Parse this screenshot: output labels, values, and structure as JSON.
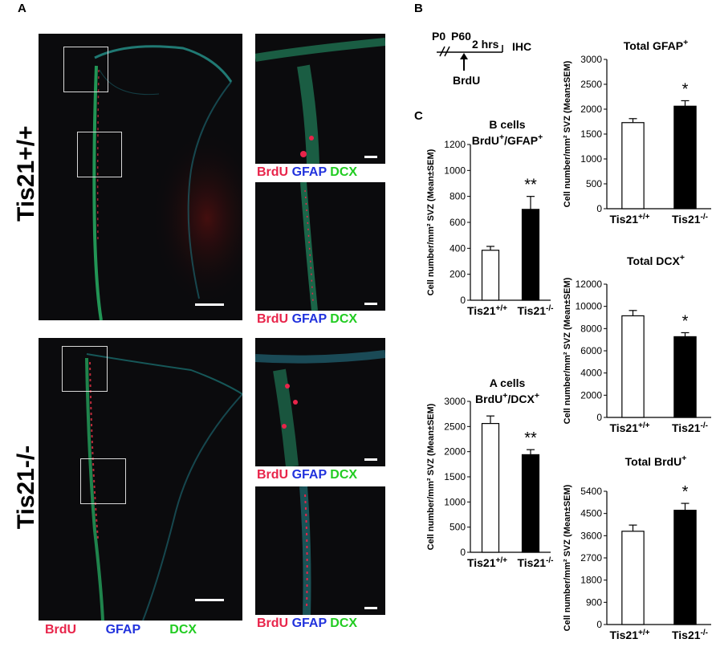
{
  "panels": {
    "a": "A",
    "b": "B",
    "c": "C"
  },
  "rows": {
    "wt": "Tis21+/+",
    "ko": "Tis21-/-"
  },
  "stains": {
    "brdu": "BrdU",
    "gfap": "GFAP",
    "dcx": "DCX"
  },
  "timeline": {
    "p0": "P0",
    "p60": "P60",
    "duration": "2 hrs",
    "ihc": "IHC",
    "brdu": "BrdU"
  },
  "colors": {
    "brdu": "#e8244a",
    "gfap": "#2233dd",
    "dcx": "#22cc22"
  },
  "chart_data": [
    {
      "id": "b_cells",
      "type": "bar",
      "title_line1": "B cells",
      "title_line2": "BrdU+/GFAP+",
      "ylabel": "Cell number/mm² SVZ (Mean±SEM)",
      "categories": [
        "Tis21+/+",
        "Tis21-/-"
      ],
      "values": [
        385,
        700
      ],
      "errors": [
        30,
        100
      ],
      "significance": "**",
      "ylim": [
        0,
        1200
      ],
      "yticks": [
        0,
        200,
        400,
        600,
        800,
        1000,
        1200
      ],
      "fills": [
        "#ffffff",
        "#000000"
      ]
    },
    {
      "id": "a_cells",
      "type": "bar",
      "title_line1": "A cells",
      "title_line2": "BrdU+/DCX+",
      "ylabel": "Cell number/mm² SVZ (Mean±SEM)",
      "categories": [
        "Tis21+/+",
        "Tis21-/-"
      ],
      "values": [
        2560,
        1940
      ],
      "errors": [
        150,
        100
      ],
      "significance": "**",
      "ylim": [
        0,
        3000
      ],
      "yticks": [
        0,
        500,
        1000,
        1500,
        2000,
        2500,
        3000
      ],
      "fills": [
        "#ffffff",
        "#000000"
      ]
    },
    {
      "id": "total_gfap",
      "type": "bar",
      "title_line1": "Total GFAP+",
      "title_line2": "",
      "ylabel": "Cell number/mm² SVZ (Mean±SEM)",
      "categories": [
        "Tis21+/+",
        "Tis21-/-"
      ],
      "values": [
        1730,
        2060
      ],
      "errors": [
        80,
        110
      ],
      "significance": "*",
      "ylim": [
        0,
        3000
      ],
      "yticks": [
        0,
        500,
        1000,
        1500,
        2000,
        2500,
        3000
      ],
      "fills": [
        "#ffffff",
        "#000000"
      ]
    },
    {
      "id": "total_dcx",
      "type": "bar",
      "title_line1": "Total DCX+",
      "title_line2": "",
      "ylabel": "Cell number/mm² SVZ (Mean±SEM)",
      "categories": [
        "Tis21+/+",
        "Tis21-/-"
      ],
      "values": [
        9150,
        7270
      ],
      "errors": [
        480,
        360
      ],
      "significance": "*",
      "ylim": [
        0,
        12000
      ],
      "yticks": [
        0,
        2000,
        4000,
        6000,
        8000,
        10000,
        12000
      ],
      "fills": [
        "#ffffff",
        "#000000"
      ]
    },
    {
      "id": "total_brdu",
      "type": "bar",
      "title_line1": "Total BrdU+",
      "title_line2": "",
      "ylabel": "Cell number/mm² SVZ (Mean±SEM)",
      "categories": [
        "Tis21+/+",
        "Tis21-/-"
      ],
      "values": [
        3780,
        4630
      ],
      "errors": [
        250,
        280
      ],
      "significance": "*",
      "ylim": [
        0,
        5400
      ],
      "yticks": [
        0,
        900,
        1800,
        2700,
        3600,
        4500,
        5400
      ],
      "fills": [
        "#ffffff",
        "#000000"
      ]
    }
  ]
}
